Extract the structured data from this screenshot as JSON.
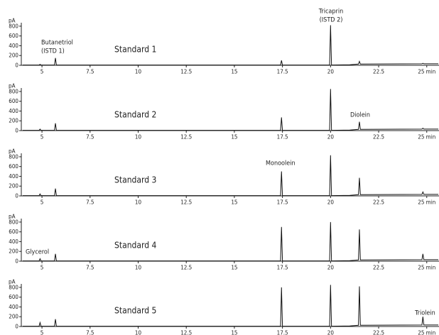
{
  "chart_data": [
    {
      "type": "line",
      "title": "Standard 1",
      "y_label": "pA",
      "color": "#111",
      "annotations": [
        "Butanetriol",
        "(ISTD 1)",
        "Tricaprin",
        "(ISTD 2)"
      ],
      "x": [
        4,
        4.85,
        4.9,
        4.95,
        5.65,
        5.7,
        5.75,
        17.4,
        17.45,
        17.5,
        19.95,
        20,
        20.05,
        21,
        21.45,
        21.5,
        21.55,
        24.75,
        24.8,
        24.85,
        25.6
      ],
      "values": [
        5,
        5,
        20,
        5,
        5,
        150,
        5,
        5,
        100,
        5,
        5,
        820,
        5,
        10,
        25,
        80,
        25,
        30,
        40,
        30,
        30
      ],
      "xlim": [
        4,
        25.6
      ],
      "ylim": [
        0,
        900
      ],
      "xticks": [
        5,
        7.5,
        10,
        12.5,
        15,
        17.5,
        20,
        22.5,
        {
          "value": 25,
          "label": "25 min"
        }
      ],
      "yticks": [
        0,
        200,
        400,
        600,
        800
      ]
    },
    {
      "type": "line",
      "title": "Standard 2",
      "y_label": "pA",
      "color": "#111",
      "annotations": [
        "Diolein"
      ],
      "x": [
        4,
        4.85,
        4.9,
        4.95,
        5.65,
        5.7,
        5.75,
        17.4,
        17.45,
        17.5,
        19.95,
        20,
        20.05,
        21,
        21.45,
        21.5,
        21.55,
        24.75,
        24.8,
        24.85,
        25.6
      ],
      "values": [
        5,
        5,
        30,
        5,
        5,
        150,
        5,
        5,
        270,
        5,
        5,
        850,
        5,
        10,
        25,
        180,
        25,
        30,
        50,
        30,
        30
      ],
      "xlim": [
        4,
        25.6
      ],
      "ylim": [
        0,
        900
      ],
      "xticks": [
        5,
        7.5,
        10,
        12.5,
        15,
        17.5,
        20,
        22.5,
        {
          "value": 25,
          "label": "25 min"
        }
      ],
      "yticks": [
        0,
        200,
        400,
        600,
        800
      ]
    },
    {
      "type": "line",
      "title": "Standard 3",
      "y_label": "pA",
      "color": "#111",
      "annotations": [
        "Monoolein"
      ],
      "x": [
        4,
        4.85,
        4.9,
        4.95,
        5.65,
        5.7,
        5.75,
        17.4,
        17.45,
        17.5,
        19.95,
        20,
        20.05,
        21,
        21.45,
        21.5,
        21.55,
        24.75,
        24.8,
        24.85,
        25.6
      ],
      "values": [
        5,
        5,
        40,
        5,
        5,
        150,
        5,
        5,
        500,
        5,
        5,
        830,
        5,
        10,
        25,
        370,
        25,
        30,
        80,
        30,
        30
      ],
      "xlim": [
        4,
        25.6
      ],
      "ylim": [
        0,
        900
      ],
      "xticks": [
        5,
        7.5,
        10,
        12.5,
        15,
        17.5,
        20,
        22.5,
        {
          "value": 25,
          "label": "25 min"
        }
      ],
      "yticks": [
        0,
        200,
        400,
        600,
        800
      ]
    },
    {
      "type": "line",
      "title": "Standard 4",
      "y_label": "pA",
      "color": "#111",
      "annotations": [
        "Glycerol"
      ],
      "x": [
        4,
        4.85,
        4.9,
        4.95,
        5.65,
        5.7,
        5.75,
        17.4,
        17.45,
        17.5,
        19.95,
        20,
        20.05,
        21,
        21.45,
        21.5,
        21.55,
        24.75,
        24.8,
        24.85,
        25.6
      ],
      "values": [
        5,
        5,
        50,
        5,
        5,
        150,
        5,
        5,
        700,
        5,
        5,
        800,
        5,
        10,
        25,
        650,
        25,
        30,
        150,
        30,
        30
      ],
      "xlim": [
        4,
        25.6
      ],
      "ylim": [
        0,
        900
      ],
      "xticks": [
        5,
        7.5,
        10,
        12.5,
        15,
        17.5,
        20,
        22.5,
        {
          "value": 25,
          "label": "25 min"
        }
      ],
      "yticks": [
        0,
        200,
        400,
        600,
        800
      ]
    },
    {
      "type": "line",
      "title": "Standard 5",
      "y_label": "pA",
      "color": "#111",
      "annotations": [
        "Triolein"
      ],
      "x": [
        4,
        4.85,
        4.9,
        4.95,
        5.65,
        5.7,
        5.75,
        17.4,
        17.45,
        17.5,
        19.95,
        20,
        20.05,
        21,
        21.45,
        21.5,
        21.55,
        24.75,
        24.8,
        24.85,
        25.6
      ],
      "values": [
        5,
        5,
        80,
        5,
        5,
        150,
        5,
        5,
        800,
        5,
        5,
        850,
        5,
        10,
        25,
        820,
        25,
        30,
        200,
        30,
        30
      ],
      "xlim": [
        4,
        25.6
      ],
      "ylim": [
        0,
        900
      ],
      "xticks": [
        5,
        7.5,
        10,
        12.5,
        15,
        17.5,
        20,
        22.5,
        {
          "value": 25,
          "label": "25 min"
        }
      ],
      "yticks": [
        0,
        200,
        400,
        600,
        800
      ]
    }
  ]
}
